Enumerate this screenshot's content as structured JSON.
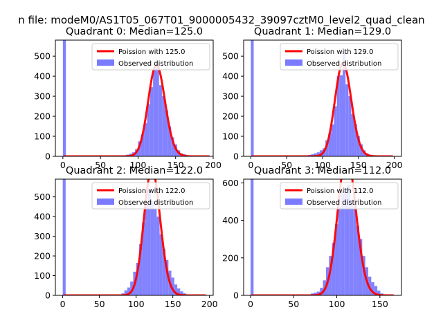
{
  "figure": {
    "title": "n file: modeM0/AS1T05_067T01_9000005432_39097cztM0_level2_quad_clean",
    "colors": {
      "hist": "#7b7bff",
      "fit": "#ff0000",
      "background": "#ffffff"
    }
  },
  "chart_data": [
    {
      "type": "bar",
      "title": "Quadrant 0: Median=125.0",
      "xlim": [
        -10,
        200
      ],
      "ylim": [
        0,
        580
      ],
      "xticks": [
        0,
        50,
        100,
        150,
        200
      ],
      "yticks": [
        0,
        100,
        200,
        300,
        400,
        500
      ],
      "legend": {
        "placement": "top-right",
        "fit_label": "Poission with 125.0",
        "hist_label": "Observed distribution"
      },
      "histogram": {
        "bin_width": 4,
        "bin_starts": [
          0,
          72,
          76,
          80,
          84,
          88,
          92,
          96,
          100,
          104,
          108,
          112,
          116,
          120,
          124,
          128,
          132,
          136,
          140,
          144,
          148,
          152,
          156,
          160,
          164,
          168,
          172
        ],
        "counts": [
          580,
          3,
          4,
          5,
          8,
          13,
          20,
          35,
          75,
          110,
          165,
          260,
          345,
          445,
          450,
          355,
          300,
          230,
          150,
          95,
          60,
          30,
          15,
          10,
          5,
          3,
          2
        ]
      },
      "fit": {
        "mean": 125.0,
        "x_start": 1,
        "x_end": 195
      }
    },
    {
      "type": "bar",
      "title": "Quadrant 1: Median=129.0",
      "xlim": [
        -10,
        210
      ],
      "ylim": [
        0,
        580
      ],
      "xticks": [
        0,
        50,
        100,
        150,
        200
      ],
      "yticks": [
        0,
        100,
        200,
        300,
        400,
        500
      ],
      "legend": {
        "placement": "top-right",
        "fit_label": "Poission with 129.0",
        "hist_label": "Observed distribution"
      },
      "histogram": {
        "bin_width": 4,
        "bin_starts": [
          0,
          72,
          76,
          80,
          84,
          88,
          92,
          96,
          100,
          104,
          108,
          112,
          116,
          120,
          124,
          128,
          132,
          136,
          140,
          144,
          148,
          152,
          156,
          160,
          164,
          168,
          172,
          176,
          180
        ],
        "counts": [
          580,
          3,
          5,
          7,
          10,
          15,
          20,
          30,
          40,
          80,
          115,
          160,
          250,
          400,
          405,
          525,
          360,
          300,
          210,
          160,
          100,
          60,
          30,
          15,
          8,
          5,
          3,
          2,
          2
        ]
      },
      "fit": {
        "mean": 129.0,
        "x_start": 1,
        "x_end": 198
      }
    },
    {
      "type": "bar",
      "title": "Quadrant 2: Median=122.0",
      "xlim": [
        -10,
        205
      ],
      "ylim": [
        0,
        590
      ],
      "xticks": [
        0,
        50,
        100,
        150,
        200
      ],
      "yticks": [
        0,
        100,
        200,
        300,
        400,
        500
      ],
      "legend": {
        "placement": "top-right",
        "fit_label": "Poission with 122.0",
        "hist_label": "Observed distribution"
      },
      "histogram": {
        "bin_width": 4,
        "bin_starts": [
          0,
          76,
          80,
          84,
          88,
          92,
          96,
          100,
          104,
          108,
          112,
          116,
          120,
          124,
          128,
          132,
          136,
          140,
          144,
          148,
          152,
          156,
          160,
          164,
          168
        ],
        "counts": [
          590,
          5,
          10,
          25,
          40,
          70,
          120,
          165,
          260,
          370,
          460,
          540,
          480,
          440,
          400,
          310,
          235,
          180,
          125,
          90,
          55,
          35,
          20,
          10,
          5
        ]
      },
      "fit": {
        "mean": 122.0,
        "x_start": 1,
        "x_end": 195
      }
    },
    {
      "type": "bar",
      "title": "Quadrant 3: Median=112.0",
      "xlim": [
        -8,
        175
      ],
      "ylim": [
        0,
        620
      ],
      "xticks": [
        0,
        50,
        100,
        150
      ],
      "yticks": [
        0,
        200,
        400,
        600
      ],
      "legend": {
        "placement": "top-right",
        "fit_label": "Poission with 112.0",
        "hist_label": "Observed distribution"
      },
      "histogram": {
        "bin_width": 3.5,
        "bin_starts": [
          0,
          66.5,
          70,
          73.5,
          77,
          80.5,
          84,
          87.5,
          91,
          94.5,
          98,
          101.5,
          105,
          108.5,
          112,
          115.5,
          119,
          122.5,
          126,
          129.5,
          133,
          136.5,
          140,
          143.5,
          147,
          150.5
        ],
        "counts": [
          620,
          5,
          10,
          15,
          20,
          40,
          80,
          150,
          210,
          280,
          380,
          470,
          545,
          575,
          590,
          510,
          470,
          370,
          300,
          210,
          150,
          100,
          70,
          50,
          25,
          10
        ]
      },
      "fit": {
        "mean": 112.0,
        "x_start": 1,
        "x_end": 166
      }
    }
  ]
}
